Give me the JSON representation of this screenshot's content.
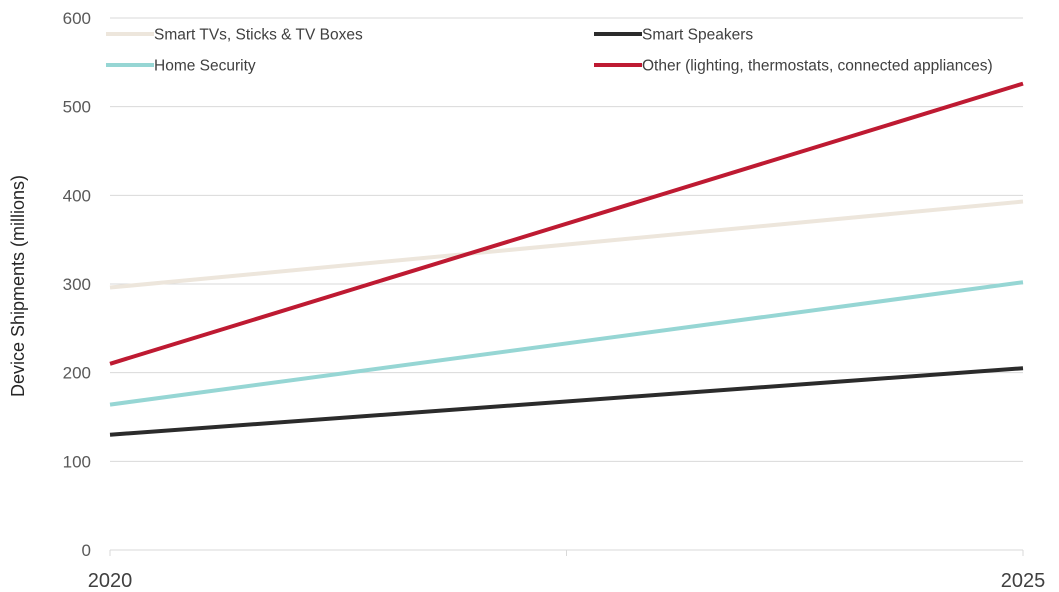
{
  "chart_data": {
    "type": "line",
    "title": "",
    "xlabel": "",
    "ylabel": "Device Shipments (millions)",
    "x": [
      "2020",
      "2025"
    ],
    "ylim": [
      0,
      600
    ],
    "yticks": [
      0,
      100,
      200,
      300,
      400,
      500,
      600
    ],
    "grid": true,
    "legend": "top",
    "series": [
      {
        "name": "Smart TVs, Sticks & TV Boxes",
        "values": [
          296,
          393
        ],
        "color": "#ede6dc"
      },
      {
        "name": "Smart Speakers",
        "values": [
          130,
          205
        ],
        "color": "#2b2b2b"
      },
      {
        "name": "Home Security",
        "values": [
          164,
          302
        ],
        "color": "#96d6d4"
      },
      {
        "name": "Other (lighting, thermostats, connected appliances)",
        "values": [
          210,
          526
        ],
        "color": "#be1a32"
      }
    ]
  }
}
